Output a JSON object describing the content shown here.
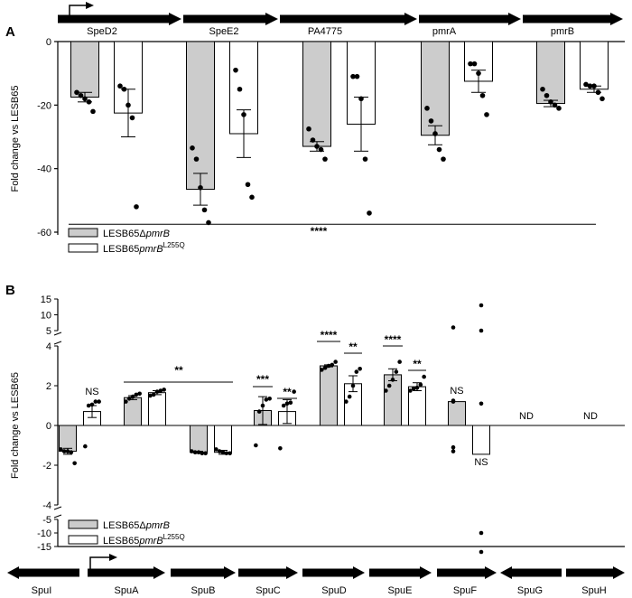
{
  "chart_data": [
    {
      "type": "bar",
      "panel_label": "A",
      "ylabel": "Fold change vs LESB65",
      "ylim": [
        -60,
        0
      ],
      "yticks": [
        0,
        -20,
        -40,
        -60
      ],
      "categories": [
        "SpeD2",
        "SpeE2",
        "PA4775",
        "pmrA",
        "pmrB"
      ],
      "series": [
        {
          "name": "LESB65ΔpmrB",
          "fill": "#cccccc",
          "values": [
            -17.5,
            -46.5,
            -33.0,
            -29.5,
            -19.5
          ],
          "errors": [
            1.5,
            5.0,
            1.5,
            3.0,
            1.0
          ],
          "points": [
            [
              -16,
              -17,
              -18,
              -19,
              -22
            ],
            [
              -33.5,
              -37,
              -46,
              -53,
              -57
            ],
            [
              -27.5,
              -31,
              -33,
              -34,
              -37
            ],
            [
              -21,
              -25,
              -29,
              -34,
              -37
            ],
            [
              -15,
              -17,
              -19,
              -20,
              -21
            ]
          ]
        },
        {
          "name": "LESB65pmrB^L255Q",
          "name_base": "LESB65pmrB",
          "name_sup": "L255Q",
          "fill": "#ffffff",
          "values": [
            -22.5,
            -29.0,
            -26.0,
            -12.5,
            -15.0
          ],
          "errors": [
            7.5,
            7.5,
            8.5,
            3.5,
            1.0
          ],
          "points": [
            [
              -14,
              -15,
              -20,
              -24,
              -52
            ],
            [
              -9,
              -15,
              -23,
              -45,
              -49
            ],
            [
              -11,
              -11,
              -18,
              -37,
              -54
            ],
            [
              -7,
              -7,
              -10,
              -17,
              -23
            ],
            [
              -13.5,
              -14,
              -14,
              -16,
              -18
            ]
          ]
        }
      ],
      "significance": {
        "label": "****",
        "y": -57.5
      },
      "legend_position": "bottom-left"
    },
    {
      "type": "bar",
      "panel_label": "B",
      "ylabel": "Fold change vs LESB65",
      "broken_axis": true,
      "ytick_labels_top": [
        "15",
        "10",
        "5"
      ],
      "ytick_labels_main": [
        "4",
        "2",
        "0",
        "-2",
        "-4"
      ],
      "ytick_labels_bottom": [
        "-5",
        "-10",
        "-15"
      ],
      "categories": [
        "SpuI",
        "SpuA",
        "SpuB",
        "SpuC",
        "SpuD",
        "SpuE",
        "SpuF",
        "SpuG",
        "SpuH"
      ],
      "series": [
        {
          "name": "LESB65ΔpmrB",
          "fill": "#cccccc",
          "values": [
            -1.3,
            1.4,
            -1.35,
            0.75,
            3.0,
            2.55,
            1.2,
            null,
            null
          ],
          "errors": [
            0.15,
            0.1,
            0.05,
            0.7,
            0.05,
            0.3,
            0,
            null,
            null
          ],
          "points": [
            [
              -1.2,
              -1.3,
              -1.3,
              -1.35,
              -1.9
            ],
            [
              1.2,
              1.35,
              1.45,
              1.55,
              1.6
            ],
            [
              -1.3,
              -1.35,
              -1.35,
              -1.4,
              -1.4
            ],
            [
              -1.0,
              0.7,
              1.0,
              1.3,
              1.35
            ],
            [
              2.8,
              2.9,
              3.0,
              3.05,
              3.2
            ],
            [
              1.75,
              2.0,
              2.3,
              2.7,
              3.2
            ],
            [
              -1.1,
              -1.3,
              1.2,
              1.25,
              6.0
            ]
          ]
        },
        {
          "name": "LESB65pmrB^L255Q",
          "name_base": "LESB65pmrB",
          "name_sup": "L255Q",
          "fill": "#ffffff",
          "values": [
            0.7,
            1.65,
            -1.35,
            0.7,
            2.1,
            1.95,
            -1.45,
            null,
            null
          ],
          "errors": [
            0.3,
            0.1,
            0.1,
            0.6,
            0.4,
            0.2,
            0,
            null,
            null
          ],
          "points": [
            [
              -1.05,
              1.0,
              1.05,
              1.2,
              1.2
            ],
            [
              1.5,
              1.55,
              1.7,
              1.75,
              1.8
            ],
            [
              -1.2,
              -1.3,
              -1.35,
              -1.4,
              -1.4
            ],
            [
              -1.15,
              1.0,
              1.1,
              1.15,
              1.7
            ],
            [
              1.2,
              1.45,
              2.0,
              2.7,
              2.85
            ],
            [
              1.75,
              1.85,
              1.9,
              2.05,
              2.45
            ],
            [
              13.0,
              5.0,
              1.1,
              -10.0,
              -17.0
            ]
          ]
        }
      ],
      "annotations": [
        {
          "text": "NS",
          "gene": "SpuI",
          "series": 1
        },
        {
          "text": "**",
          "gene": "SpuA-SpuB",
          "series": -1
        },
        {
          "text": "***",
          "gene": "SpuC",
          "series": 0
        },
        {
          "text": "**",
          "gene": "SpuC",
          "series": 1
        },
        {
          "text": "****",
          "gene": "SpuD",
          "series": 0
        },
        {
          "text": "**",
          "gene": "SpuD",
          "series": 1
        },
        {
          "text": "****",
          "gene": "SpuE",
          "series": 0
        },
        {
          "text": "**",
          "gene": "SpuE",
          "series": 1
        },
        {
          "text": "NS",
          "gene": "SpuF",
          "series": 0
        },
        {
          "text": "NS",
          "gene": "SpuF",
          "series": 1
        },
        {
          "text": "ND",
          "gene": "SpuG",
          "series": -1
        },
        {
          "text": "ND",
          "gene": "SpuH",
          "series": -1
        }
      ],
      "legend_position": "bottom-left"
    }
  ]
}
